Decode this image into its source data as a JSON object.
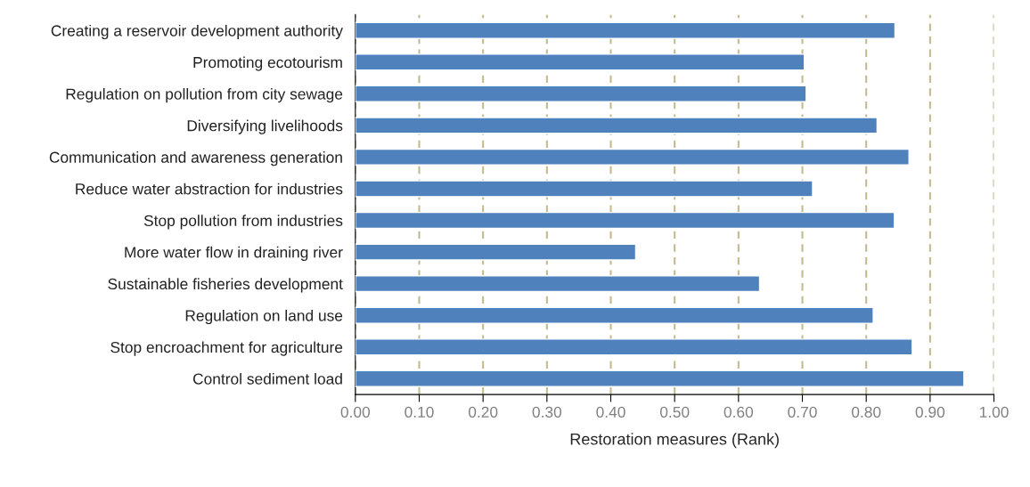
{
  "chart_data": {
    "type": "bar",
    "orientation": "horizontal",
    "xlabel": "Restoration measures (Rank)",
    "categories": [
      "Creating a reservoir development authority",
      "Promoting ecotourism",
      "Regulation on pollution from city sewage",
      "Diversifying livelihoods",
      "Communication and awareness generation",
      "Reduce water abstraction for industries",
      "Stop pollution from industries",
      "More water flow in draining river",
      "Sustainable fisheries development",
      "Regulation on land use",
      "Stop encroachment for agriculture",
      "Control sediment load"
    ],
    "values": [
      0.845,
      0.703,
      0.706,
      0.817,
      0.867,
      0.716,
      0.844,
      0.439,
      0.633,
      0.811,
      0.872,
      0.953
    ],
    "color": "#4f81bd",
    "xlim": [
      0,
      1
    ],
    "xticks": [
      {
        "value": 0,
        "label": "0.00"
      },
      {
        "value": 0.1,
        "label": "0.10"
      },
      {
        "value": 0.2,
        "label": "0.20"
      },
      {
        "value": 0.3,
        "label": "0.30"
      },
      {
        "value": 0.4,
        "label": "0.40"
      },
      {
        "value": 0.5,
        "label": "0.50"
      },
      {
        "value": 0.6,
        "label": "0.60"
      },
      {
        "value": 0.7,
        "label": "0.70"
      },
      {
        "value": 0.8,
        "label": "0.80"
      },
      {
        "value": 0.9,
        "label": "0.90"
      },
      {
        "value": 1,
        "label": "1.00"
      }
    ],
    "grid": "x"
  }
}
